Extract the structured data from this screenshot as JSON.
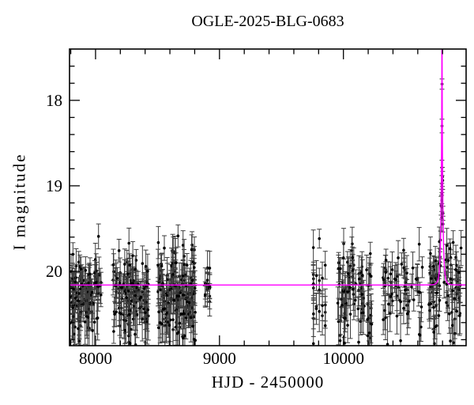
{
  "figure": {
    "background_color": "#ffffff",
    "frame_color": "#000000",
    "data_color": "#000000",
    "errorbar_color": "#3c3c3c",
    "model_color": "#ff00ff"
  },
  "chart_data": {
    "type": "scatter",
    "title": "OGLE-2025-BLG-0683",
    "xlabel": "HJD - 2450000",
    "ylabel": "I magnitude",
    "grid": false,
    "legend": null,
    "x_range": [
      7790,
      10990
    ],
    "y_range_mag": [
      17.4,
      20.87
    ],
    "y_axis_inverted": true,
    "x_tick_values": [
      8000,
      9000,
      10000
    ],
    "x_tick_labels": [
      "8000",
      "9000",
      "10000"
    ],
    "x_minor_step": 200,
    "y_tick_values": [
      18,
      19,
      20
    ],
    "y_tick_labels": [
      "18",
      "19",
      "20"
    ],
    "y_minor_step": 0.2,
    "baseline_mag": 20.16,
    "model": {
      "type": "paczynski_microlensing",
      "t0": 10795.5,
      "tE": 16,
      "u0": 0.04,
      "I0": 20.16
    },
    "seasons": [
      {
        "t_start": 7790,
        "t_end": 8045,
        "n": 115,
        "mag_mean": 20.24,
        "mag_sigma": 0.21,
        "night_step": 1
      },
      {
        "t_start": 8140,
        "t_end": 8427,
        "n": 125,
        "mag_mean": 20.22,
        "mag_sigma": 0.22,
        "night_step": 1
      },
      {
        "t_start": 8503,
        "t_end": 8809,
        "n": 155,
        "mag_mean": 20.24,
        "mag_sigma": 0.23,
        "night_step": 1
      },
      {
        "t_start": 8885,
        "t_end": 8936,
        "n": 14,
        "mag_mean": 20.2,
        "mag_sigma": 0.22,
        "night_step": 18
      },
      {
        "t_start": 9758,
        "t_end": 9860,
        "n": 22,
        "mag_mean": 20.2,
        "mag_sigma": 0.22,
        "night_step": 24
      },
      {
        "t_start": 9955,
        "t_end": 10236,
        "n": 85,
        "mag_mean": 20.24,
        "mag_sigma": 0.22,
        "night_step": 1
      },
      {
        "t_start": 10318,
        "t_end": 10637,
        "n": 62,
        "mag_mean": 20.22,
        "mag_sigma": 0.22,
        "night_step": 2
      },
      {
        "t_start": 10681,
        "t_end": 10955,
        "n": 88,
        "mag_mean": 20.22,
        "mag_sigma": 0.23,
        "night_step": 1
      }
    ],
    "event_points": [
      [
        10792.0,
        19.37,
        0.16
      ],
      [
        10793.0,
        19.25,
        0.14
      ],
      [
        10793.8,
        19.17,
        0.13
      ],
      [
        10794.4,
        19.09,
        0.12
      ],
      [
        10794.9,
        18.98,
        0.1
      ],
      [
        10795.2,
        18.79,
        0.09
      ],
      [
        10795.5,
        18.3,
        0.08
      ],
      [
        10795.8,
        17.81,
        0.06
      ]
    ]
  }
}
